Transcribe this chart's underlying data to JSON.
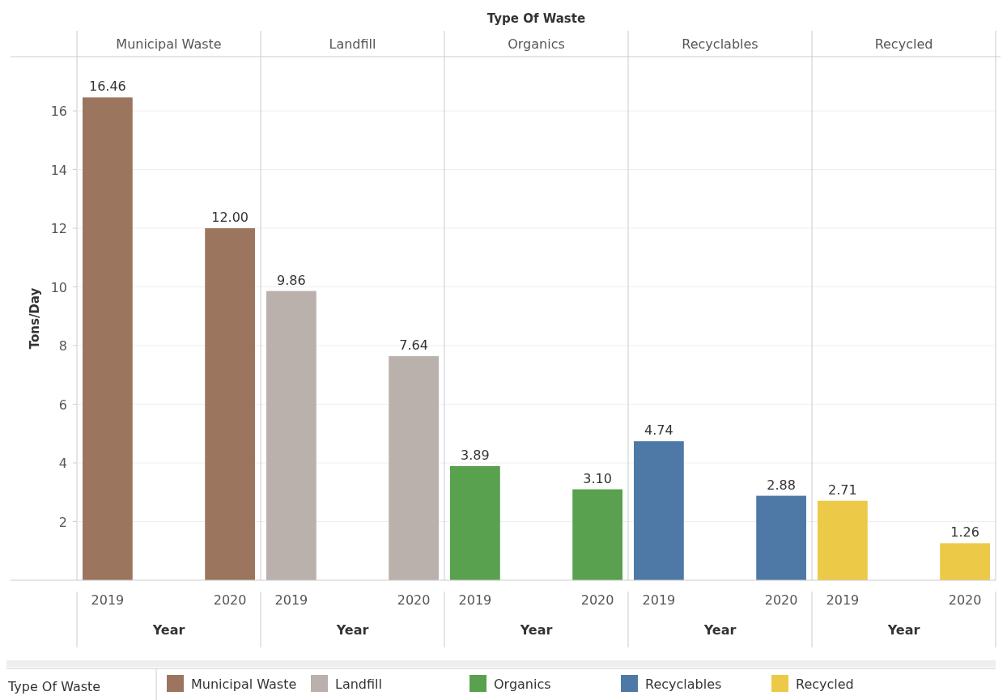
{
  "chart_data": {
    "type": "bar",
    "title": "Type Of Waste",
    "xlabel": "Year",
    "ylabel": "Tons/Day",
    "legend_title": "Type Of Waste",
    "categories": [
      "2019",
      "2020",
      "2019",
      "2020",
      "2019",
      "2020",
      "2019",
      "2020",
      "2019",
      "2020"
    ],
    "series": [
      {
        "name": "Municipal Waste",
        "color": "#9c755f",
        "values": [
          16.46,
          12.0,
          null,
          null,
          null,
          null,
          null,
          null,
          null,
          null
        ],
        "value_labels": [
          "16.46",
          "12.00",
          null,
          null,
          null,
          null,
          null,
          null,
          null,
          null
        ]
      },
      {
        "name": "Landfill",
        "color": "#bab0ac",
        "values": [
          null,
          null,
          9.86,
          7.64,
          null,
          null,
          null,
          null,
          null,
          null
        ],
        "value_labels": [
          null,
          null,
          "9.86",
          "7.64",
          null,
          null,
          null,
          null,
          null,
          null
        ]
      },
      {
        "name": "Organics",
        "color": "#59a14f",
        "values": [
          null,
          null,
          null,
          null,
          3.89,
          3.1,
          null,
          null,
          null,
          null
        ],
        "value_labels": [
          null,
          null,
          null,
          null,
          "3.89",
          "3.10",
          null,
          null,
          null,
          null
        ]
      },
      {
        "name": "Recyclables",
        "color": "#4e79a7",
        "values": [
          null,
          null,
          null,
          null,
          null,
          null,
          4.74,
          2.88,
          null,
          null
        ],
        "value_labels": [
          null,
          null,
          null,
          null,
          null,
          null,
          "4.74",
          "2.88",
          null,
          null
        ]
      },
      {
        "name": "Recycled",
        "color": "#edc948",
        "values": [
          null,
          null,
          null,
          null,
          null,
          null,
          null,
          null,
          2.71,
          1.26
        ],
        "value_labels": [
          null,
          null,
          null,
          null,
          null,
          null,
          null,
          null,
          "2.71",
          "1.26"
        ]
      }
    ],
    "ylim": [
      0,
      17.85
    ],
    "yticks": [
      2,
      4,
      6,
      8,
      10,
      12,
      14,
      16
    ],
    "grid": "y",
    "legend": "bottom"
  }
}
